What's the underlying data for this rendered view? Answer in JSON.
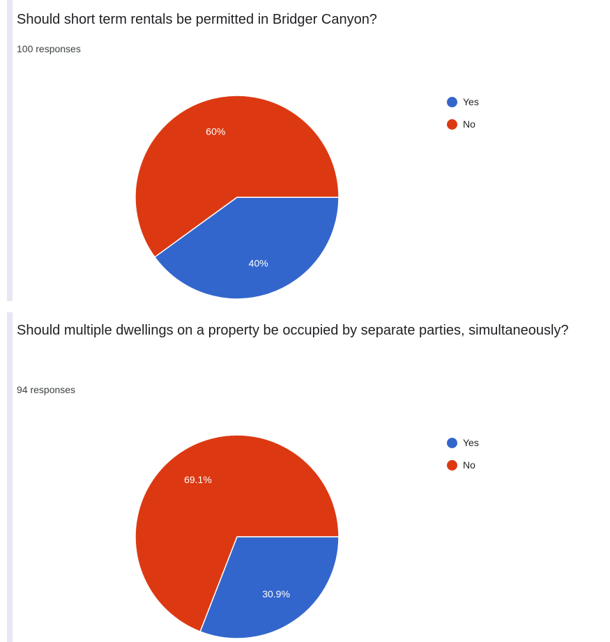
{
  "questions": [
    {
      "title": "Should short term rentals be permitted in Bridger Canyon?",
      "responses": "100 responses"
    },
    {
      "title": "Should multiple dwellings on a property be occupied by separate parties, simultaneously?",
      "responses": "94 responses"
    }
  ],
  "colors": {
    "yes": "#3366cc",
    "no": "#dc3912",
    "accent_bar": "#e8e6f2"
  },
  "chart_data": [
    {
      "type": "pie",
      "title": "Should short term rentals be permitted in Bridger Canyon?",
      "categories": [
        "Yes",
        "No"
      ],
      "values": [
        40,
        60
      ],
      "labels": [
        "40%",
        "60%"
      ],
      "legend_position": "right"
    },
    {
      "type": "pie",
      "title": "Should multiple dwellings on a property be occupied by separate parties, simultaneously?",
      "categories": [
        "Yes",
        "No"
      ],
      "values": [
        30.9,
        69.1
      ],
      "labels": [
        "30.9%",
        "69.1%"
      ],
      "legend_position": "right"
    }
  ]
}
